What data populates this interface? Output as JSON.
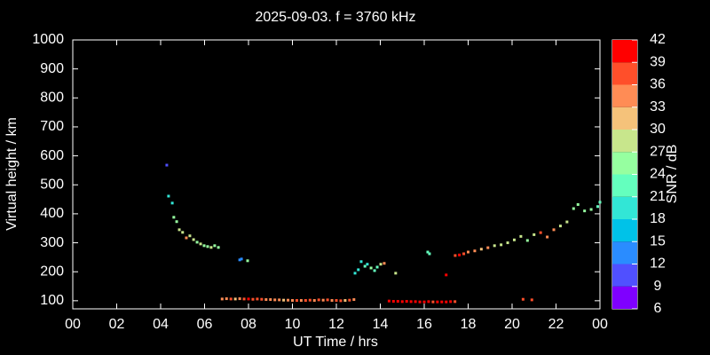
{
  "chart_data": {
    "type": "scatter",
    "title": "2025-09-03. f = 3760 kHz",
    "xlabel": "UT Time / hrs",
    "ylabel": "Virtual height / km",
    "xlim": [
      0,
      24
    ],
    "xticks": [
      {
        "value": 0,
        "label": "00"
      },
      {
        "value": 2,
        "label": "02"
      },
      {
        "value": 4,
        "label": "04"
      },
      {
        "value": 6,
        "label": "06"
      },
      {
        "value": 8,
        "label": "08"
      },
      10,
      12,
      14,
      16,
      18,
      20,
      22,
      {
        "value": 24,
        "label": "00"
      }
    ],
    "ylim": [
      72,
      1000
    ],
    "yticks": [
      100,
      200,
      300,
      400,
      500,
      600,
      700,
      800,
      900,
      1000
    ],
    "clabel": "SNR / dB",
    "clim": [
      6,
      42
    ],
    "cticks": [
      6,
      9,
      12,
      15,
      18,
      21,
      24,
      27,
      30,
      33,
      36,
      39,
      42
    ],
    "colorscale": [
      "#7f00ff",
      "#5050ff",
      "#2a8cff",
      "#00c2e8",
      "#32e6d6",
      "#64ffbe",
      "#96ffa0",
      "#c8e68c",
      "#f5c27a",
      "#ff8c55",
      "#ff4f2a",
      "#ff0000"
    ],
    "x": [
      4.28,
      4.36,
      4.53,
      4.6,
      4.73,
      4.85,
      5.0,
      5.17,
      5.33,
      5.5,
      5.66,
      5.82,
      5.98,
      6.14,
      6.3,
      6.46,
      6.63,
      7.6,
      7.68,
      7.96,
      12.85,
      13.0,
      13.13,
      13.3,
      13.41,
      13.58,
      13.74,
      13.86,
      14.02,
      14.18,
      14.7,
      16.16,
      16.24,
      17.0,
      17.41,
      17.6,
      17.8,
      18.0,
      18.3,
      18.6,
      18.9,
      19.2,
      19.5,
      19.8,
      20.1,
      20.4,
      20.7,
      21.0,
      21.3,
      21.6,
      21.9,
      22.2,
      22.5,
      22.8,
      23.0,
      23.3,
      23.6,
      23.9,
      24.0,
      6.8,
      7.0,
      7.2,
      7.4,
      7.6,
      7.8,
      8.0,
      8.2,
      8.4,
      8.6,
      8.8,
      9.0,
      9.2,
      9.4,
      9.6,
      9.8,
      10.0,
      10.2,
      10.4,
      10.6,
      10.8,
      11.0,
      11.2,
      11.4,
      11.6,
      11.8,
      12.0,
      12.2,
      12.4,
      12.6,
      12.8,
      14.4,
      14.6,
      14.8,
      15.0,
      15.2,
      15.4,
      15.6,
      15.8,
      16.0,
      16.2,
      16.4,
      16.6,
      16.8,
      17.0,
      17.2,
      17.4,
      20.5,
      20.9
    ],
    "y": [
      568,
      461,
      437,
      388,
      373,
      345,
      336,
      317,
      324,
      311,
      302,
      296,
      290,
      287,
      284,
      290,
      284,
      241,
      244,
      238,
      195,
      207,
      235,
      219,
      226,
      213,
      204,
      216,
      226,
      229,
      195,
      268,
      262,
      189,
      256,
      258,
      262,
      268,
      272,
      278,
      283,
      290,
      293,
      300,
      310,
      322,
      308,
      328,
      335,
      320,
      345,
      358,
      372,
      418,
      432,
      410,
      415,
      425,
      440,
      106,
      107,
      106,
      106,
      107,
      106,
      106,
      105,
      106,
      105,
      104,
      104,
      103,
      103,
      102,
      102,
      101,
      101,
      101,
      101,
      102,
      101,
      103,
      102,
      103,
      101,
      101,
      100,
      101,
      102,
      104,
      99,
      98,
      98,
      97,
      98,
      97,
      97,
      96,
      96,
      97,
      96,
      96,
      96,
      96,
      97,
      97,
      105,
      103
    ],
    "snr": [
      11,
      20,
      20,
      24,
      26,
      27,
      28,
      33,
      28,
      28,
      26,
      27,
      26,
      26,
      27,
      26,
      24,
      12,
      12,
      24,
      20,
      20,
      18,
      22,
      20,
      24,
      22,
      22,
      28,
      35,
      27,
      21,
      21,
      42,
      36,
      39,
      36,
      33,
      33,
      30,
      33,
      28,
      27,
      28,
      27,
      28,
      26,
      27,
      36,
      33,
      33,
      28,
      27,
      24,
      24,
      24,
      24,
      22,
      22,
      33,
      33,
      36,
      30,
      33,
      36,
      39,
      36,
      36,
      36,
      33,
      33,
      33,
      33,
      30,
      33,
      33,
      36,
      33,
      36,
      36,
      33,
      36,
      33,
      36,
      33,
      36,
      36,
      30,
      36,
      33,
      42,
      39,
      42,
      42,
      39,
      42,
      39,
      42,
      42,
      39,
      36,
      39,
      42,
      42,
      39,
      36,
      36,
      36
    ]
  }
}
